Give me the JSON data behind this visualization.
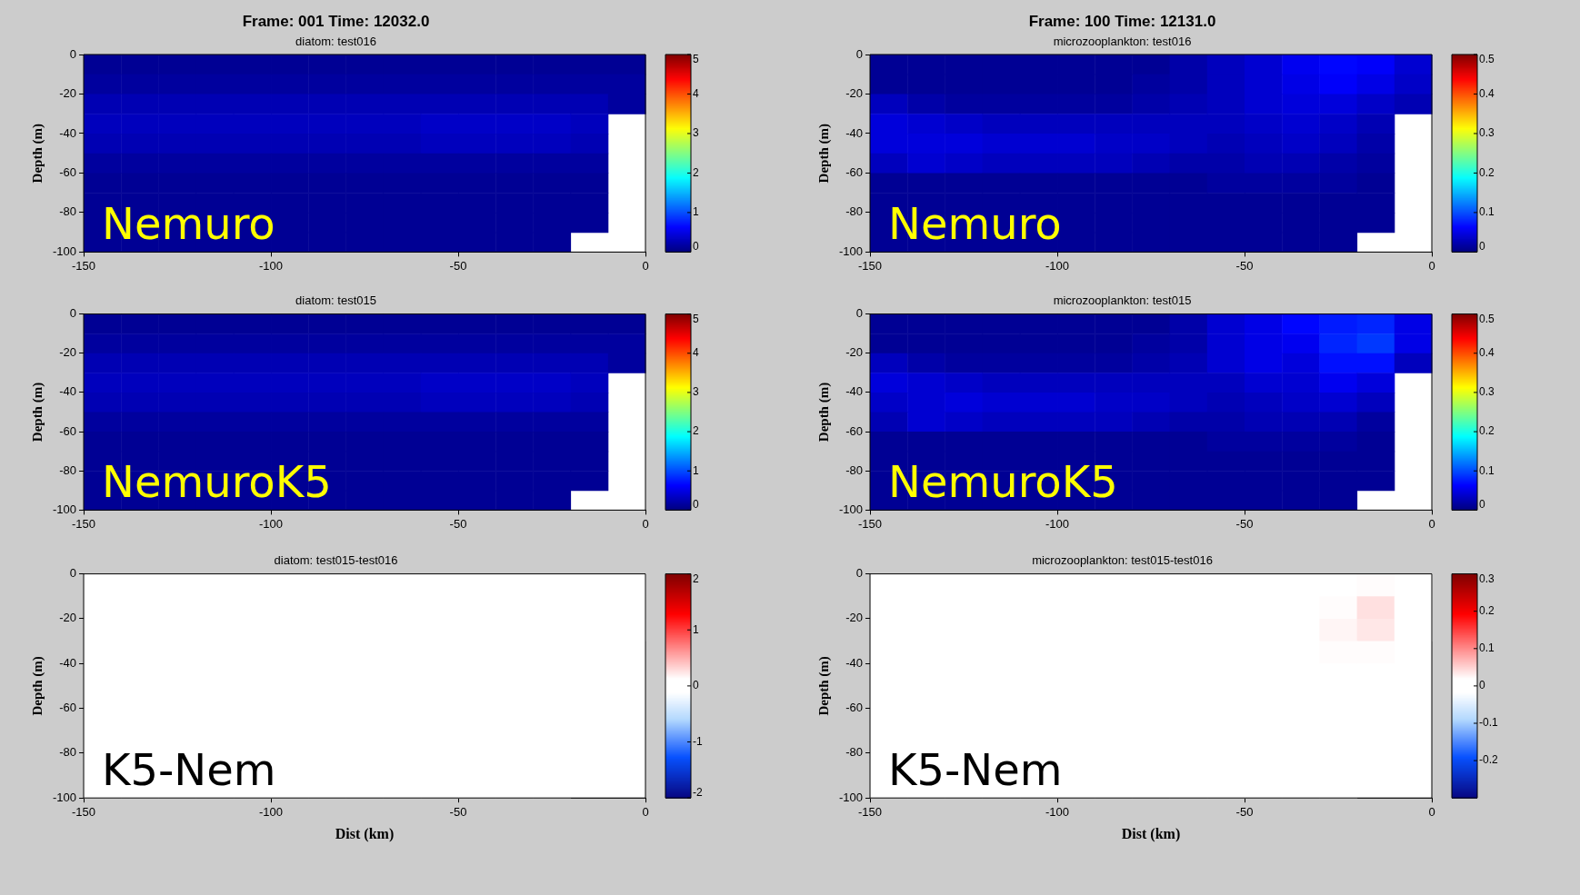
{
  "chart_data": [
    {
      "type": "heatmap",
      "title": "Frame: 001 Time: 12032.0",
      "subtitle": "diatom: test016",
      "ylabel": "Depth (m)",
      "annotations": [
        "Nemuro"
      ],
      "x": [
        -145,
        -135,
        -125,
        -115,
        -105,
        -95,
        -85,
        -75,
        -65,
        -55,
        -45,
        -35,
        -25,
        -15,
        -5
      ],
      "y": [
        -5,
        -15,
        -25,
        -35,
        -45,
        -55,
        -65,
        -75,
        -85,
        -95
      ],
      "xlim": [
        -150,
        0
      ],
      "xticks": [
        -150,
        -100,
        -50,
        0
      ],
      "ylim": [
        -100,
        0
      ],
      "yticks": [
        -100,
        -80,
        -60,
        -40,
        -20,
        0
      ],
      "clim": [
        0,
        5
      ],
      "cticks": [
        0,
        1,
        2,
        3,
        4,
        5
      ],
      "cells": [
        [
          0.1,
          0.1,
          0.1,
          0.1,
          0.1,
          0.1,
          0.1,
          0.1,
          0.1,
          0.1,
          0.1,
          0.1,
          0.1,
          0.1,
          0.1
        ],
        [
          0.15,
          0.15,
          0.15,
          0.15,
          0.15,
          0.15,
          0.15,
          0.15,
          0.15,
          0.15,
          0.15,
          0.15,
          0.15,
          0.15,
          0.15
        ],
        [
          0.25,
          0.25,
          0.25,
          0.25,
          0.25,
          0.25,
          0.25,
          0.25,
          0.25,
          0.25,
          0.25,
          0.25,
          0.25,
          0.25,
          0.15
        ],
        [
          0.3,
          0.3,
          0.3,
          0.3,
          0.3,
          0.3,
          0.3,
          0.3,
          0.3,
          0.35,
          0.35,
          0.35,
          0.35,
          0.3,
          null
        ],
        [
          0.25,
          0.25,
          0.25,
          0.25,
          0.25,
          0.25,
          0.25,
          0.25,
          0.25,
          0.3,
          0.3,
          0.3,
          0.3,
          0.25,
          null
        ],
        [
          0.15,
          0.15,
          0.15,
          0.15,
          0.15,
          0.15,
          0.15,
          0.15,
          0.15,
          0.15,
          0.15,
          0.15,
          0.15,
          0.15,
          null
        ],
        [
          0.1,
          0.1,
          0.1,
          0.1,
          0.1,
          0.1,
          0.1,
          0.1,
          0.1,
          0.1,
          0.1,
          0.1,
          0.1,
          0.1,
          null
        ],
        [
          0.1,
          0.1,
          0.1,
          0.1,
          0.1,
          0.1,
          0.1,
          0.1,
          0.1,
          0.1,
          0.1,
          0.1,
          0.1,
          0.1,
          null
        ],
        [
          0.1,
          0.1,
          0.1,
          0.1,
          0.1,
          0.1,
          0.1,
          0.1,
          0.1,
          0.1,
          0.1,
          0.1,
          0.1,
          0.1,
          null
        ],
        [
          0.1,
          0.1,
          0.1,
          0.1,
          0.1,
          0.1,
          0.1,
          0.1,
          0.1,
          0.1,
          0.1,
          0.1,
          0.1,
          null,
          null
        ]
      ]
    },
    {
      "type": "heatmap",
      "title": "Frame: 100 Time: 12131.0",
      "subtitle": "microzooplankton: test016",
      "ylabel": "Depth (m)",
      "annotations": [
        "Nemuro"
      ],
      "x": [
        -145,
        -135,
        -125,
        -115,
        -105,
        -95,
        -85,
        -75,
        -65,
        -55,
        -45,
        -35,
        -25,
        -15,
        -5
      ],
      "y": [
        -5,
        -15,
        -25,
        -35,
        -45,
        -55,
        -65,
        -75,
        -85,
        -95
      ],
      "xlim": [
        -150,
        0
      ],
      "xticks": [
        -150,
        -100,
        -50,
        0
      ],
      "ylim": [
        -100,
        0
      ],
      "yticks": [
        -100,
        -80,
        -60,
        -40,
        -20,
        0
      ],
      "clim": [
        0,
        0.5
      ],
      "cticks": [
        0,
        0.1,
        0.2,
        0.3,
        0.4,
        0.5
      ],
      "cells": [
        [
          0.01,
          0.01,
          0.01,
          0.01,
          0.01,
          0.01,
          0.01,
          0.01,
          0.02,
          0.03,
          0.04,
          0.055,
          0.065,
          0.06,
          0.04
        ],
        [
          0.01,
          0.01,
          0.01,
          0.01,
          0.01,
          0.01,
          0.01,
          0.015,
          0.02,
          0.03,
          0.04,
          0.05,
          0.06,
          0.05,
          0.035
        ],
        [
          0.03,
          0.02,
          0.015,
          0.015,
          0.015,
          0.015,
          0.015,
          0.02,
          0.025,
          0.03,
          0.04,
          0.045,
          0.045,
          0.035,
          0.025
        ],
        [
          0.045,
          0.04,
          0.035,
          0.03,
          0.03,
          0.03,
          0.03,
          0.03,
          0.03,
          0.03,
          0.035,
          0.04,
          0.035,
          0.025,
          null
        ],
        [
          0.045,
          0.045,
          0.045,
          0.04,
          0.04,
          0.04,
          0.035,
          0.035,
          0.03,
          0.025,
          0.03,
          0.035,
          0.03,
          0.02,
          null
        ],
        [
          0.03,
          0.04,
          0.035,
          0.03,
          0.03,
          0.03,
          0.03,
          0.025,
          0.02,
          0.02,
          0.025,
          0.025,
          0.02,
          0.015,
          null
        ],
        [
          0.01,
          0.01,
          0.01,
          0.01,
          0.01,
          0.01,
          0.01,
          0.01,
          0.01,
          0.015,
          0.015,
          0.015,
          0.015,
          0.01,
          null
        ],
        [
          0.01,
          0.01,
          0.01,
          0.01,
          0.01,
          0.01,
          0.01,
          0.01,
          0.01,
          0.01,
          0.01,
          0.01,
          0.01,
          0.01,
          null
        ],
        [
          0.01,
          0.01,
          0.01,
          0.01,
          0.01,
          0.01,
          0.01,
          0.01,
          0.01,
          0.01,
          0.01,
          0.01,
          0.01,
          0.01,
          null
        ],
        [
          0.01,
          0.01,
          0.01,
          0.01,
          0.01,
          0.01,
          0.01,
          0.01,
          0.01,
          0.01,
          0.01,
          0.01,
          0.01,
          null,
          null
        ]
      ]
    },
    {
      "type": "heatmap",
      "title": "diatom: test015",
      "ylabel": "Depth (m)",
      "annotations": [
        "NemuroK5"
      ],
      "x": [
        -145,
        -135,
        -125,
        -115,
        -105,
        -95,
        -85,
        -75,
        -65,
        -55,
        -45,
        -35,
        -25,
        -15,
        -5
      ],
      "y": [
        -5,
        -15,
        -25,
        -35,
        -45,
        -55,
        -65,
        -75,
        -85,
        -95
      ],
      "xlim": [
        -150,
        0
      ],
      "xticks": [
        -150,
        -100,
        -50,
        0
      ],
      "ylim": [
        -100,
        0
      ],
      "yticks": [
        -100,
        -80,
        -60,
        -40,
        -20,
        0
      ],
      "clim": [
        0,
        5
      ],
      "cticks": [
        0,
        1,
        2,
        3,
        4,
        5
      ],
      "cells": [
        [
          0.1,
          0.1,
          0.1,
          0.1,
          0.1,
          0.1,
          0.1,
          0.1,
          0.1,
          0.1,
          0.1,
          0.1,
          0.1,
          0.1,
          0.1
        ],
        [
          0.15,
          0.15,
          0.15,
          0.15,
          0.15,
          0.15,
          0.15,
          0.15,
          0.15,
          0.15,
          0.15,
          0.15,
          0.15,
          0.15,
          0.15
        ],
        [
          0.25,
          0.25,
          0.25,
          0.25,
          0.25,
          0.25,
          0.25,
          0.25,
          0.25,
          0.25,
          0.25,
          0.25,
          0.25,
          0.25,
          0.15
        ],
        [
          0.3,
          0.3,
          0.3,
          0.3,
          0.3,
          0.3,
          0.3,
          0.3,
          0.3,
          0.35,
          0.35,
          0.35,
          0.35,
          0.3,
          null
        ],
        [
          0.25,
          0.25,
          0.25,
          0.25,
          0.25,
          0.25,
          0.25,
          0.25,
          0.25,
          0.3,
          0.3,
          0.3,
          0.3,
          0.25,
          null
        ],
        [
          0.15,
          0.15,
          0.15,
          0.15,
          0.15,
          0.15,
          0.15,
          0.15,
          0.15,
          0.15,
          0.15,
          0.15,
          0.15,
          0.15,
          null
        ],
        [
          0.1,
          0.1,
          0.1,
          0.1,
          0.1,
          0.1,
          0.1,
          0.1,
          0.1,
          0.1,
          0.1,
          0.1,
          0.1,
          0.1,
          null
        ],
        [
          0.1,
          0.1,
          0.1,
          0.1,
          0.1,
          0.1,
          0.1,
          0.1,
          0.1,
          0.1,
          0.1,
          0.1,
          0.1,
          0.1,
          null
        ],
        [
          0.1,
          0.1,
          0.1,
          0.1,
          0.1,
          0.1,
          0.1,
          0.1,
          0.1,
          0.1,
          0.1,
          0.1,
          0.1,
          0.1,
          null
        ],
        [
          0.1,
          0.1,
          0.1,
          0.1,
          0.1,
          0.1,
          0.1,
          0.1,
          0.1,
          0.1,
          0.1,
          0.1,
          0.1,
          null,
          null
        ]
      ]
    },
    {
      "type": "heatmap",
      "title": "microzooplankton: test015",
      "ylabel": "Depth (m)",
      "annotations": [
        "NemuroK5"
      ],
      "x": [
        -145,
        -135,
        -125,
        -115,
        -105,
        -95,
        -85,
        -75,
        -65,
        -55,
        -45,
        -35,
        -25,
        -15,
        -5
      ],
      "y": [
        -5,
        -15,
        -25,
        -35,
        -45,
        -55,
        -65,
        -75,
        -85,
        -95
      ],
      "xlim": [
        -150,
        0
      ],
      "xticks": [
        -150,
        -100,
        -50,
        0
      ],
      "ylim": [
        -100,
        0
      ],
      "yticks": [
        -100,
        -80,
        -60,
        -40,
        -20,
        0
      ],
      "clim": [
        0,
        0.5
      ],
      "cticks": [
        0,
        0.1,
        0.2,
        0.3,
        0.4,
        0.5
      ],
      "cells": [
        [
          0.01,
          0.01,
          0.01,
          0.01,
          0.01,
          0.01,
          0.01,
          0.01,
          0.02,
          0.04,
          0.05,
          0.065,
          0.075,
          0.08,
          0.05
        ],
        [
          0.01,
          0.01,
          0.01,
          0.01,
          0.01,
          0.01,
          0.01,
          0.015,
          0.02,
          0.04,
          0.05,
          0.055,
          0.08,
          0.09,
          0.05
        ],
        [
          0.03,
          0.02,
          0.015,
          0.015,
          0.015,
          0.015,
          0.015,
          0.02,
          0.025,
          0.04,
          0.05,
          0.045,
          0.07,
          0.07,
          0.03
        ],
        [
          0.045,
          0.04,
          0.035,
          0.03,
          0.03,
          0.03,
          0.03,
          0.03,
          0.03,
          0.03,
          0.04,
          0.04,
          0.055,
          0.045,
          null
        ],
        [
          0.035,
          0.04,
          0.045,
          0.04,
          0.04,
          0.04,
          0.035,
          0.035,
          0.03,
          0.025,
          0.03,
          0.035,
          0.04,
          0.03,
          null
        ],
        [
          0.025,
          0.04,
          0.035,
          0.03,
          0.03,
          0.03,
          0.03,
          0.025,
          0.02,
          0.02,
          0.025,
          0.025,
          0.025,
          0.015,
          null
        ],
        [
          0.01,
          0.01,
          0.01,
          0.01,
          0.01,
          0.01,
          0.01,
          0.01,
          0.01,
          0.015,
          0.015,
          0.015,
          0.015,
          0.01,
          null
        ],
        [
          0.01,
          0.01,
          0.01,
          0.01,
          0.01,
          0.01,
          0.01,
          0.01,
          0.01,
          0.01,
          0.01,
          0.01,
          0.01,
          0.01,
          null
        ],
        [
          0.01,
          0.01,
          0.01,
          0.01,
          0.01,
          0.01,
          0.01,
          0.01,
          0.01,
          0.01,
          0.01,
          0.01,
          0.01,
          0.01,
          null
        ],
        [
          0.01,
          0.01,
          0.01,
          0.01,
          0.01,
          0.01,
          0.01,
          0.01,
          0.01,
          0.01,
          0.01,
          0.01,
          0.01,
          null,
          null
        ]
      ]
    },
    {
      "type": "heatmap",
      "title": "diatom: test015-test016",
      "xlabel": "Dist (km)",
      "ylabel": "Depth (m)",
      "annotations": [
        "K5-Nem"
      ],
      "x": [
        -145,
        -135,
        -125,
        -115,
        -105,
        -95,
        -85,
        -75,
        -65,
        -55,
        -45,
        -35,
        -25,
        -15,
        -5
      ],
      "y": [
        -5,
        -15,
        -25,
        -35,
        -45,
        -55,
        -65,
        -75,
        -85,
        -95
      ],
      "xlim": [
        -150,
        0
      ],
      "xticks": [
        -150,
        -100,
        -50,
        0
      ],
      "ylim": [
        -100,
        0
      ],
      "yticks": [
        -100,
        -80,
        -60,
        -40,
        -20,
        0
      ],
      "clim": [
        -2,
        2
      ],
      "cticks": [
        -2,
        -1,
        0,
        1,
        2
      ],
      "cells": [
        [
          0,
          0,
          0,
          0,
          0,
          0,
          0,
          0,
          0,
          0,
          0,
          0,
          0,
          0,
          0
        ],
        [
          0,
          0,
          0,
          0,
          0,
          0,
          0,
          0,
          0,
          0,
          0,
          0,
          0,
          0,
          0
        ],
        [
          0,
          0,
          0,
          0,
          0,
          0,
          0,
          0,
          0,
          0,
          0,
          0,
          0,
          0,
          0
        ],
        [
          0,
          0,
          0,
          0,
          0,
          0,
          0,
          0,
          0,
          0,
          0,
          0,
          0,
          0,
          null
        ],
        [
          0,
          0,
          0,
          0,
          0,
          0,
          0,
          0,
          0,
          0,
          0,
          0,
          0,
          0,
          null
        ],
        [
          0,
          0,
          0,
          0,
          0,
          0,
          0,
          0,
          0,
          0,
          0,
          0,
          0,
          0,
          null
        ],
        [
          0,
          0,
          0,
          0,
          0,
          0,
          0,
          0,
          0,
          0,
          0,
          0,
          0,
          0,
          null
        ],
        [
          0,
          0,
          0,
          0,
          0,
          0,
          0,
          0,
          0,
          0,
          0,
          0,
          0,
          0,
          null
        ],
        [
          0,
          0,
          0,
          0,
          0,
          0,
          0,
          0,
          0,
          0,
          0,
          0,
          0,
          0,
          null
        ],
        [
          0,
          0,
          0,
          0,
          0,
          0,
          0,
          0,
          0,
          0,
          0,
          0,
          0,
          null,
          null
        ]
      ]
    },
    {
      "type": "heatmap",
      "title": "microzooplankton: test015-test016",
      "xlabel": "Dist (km)",
      "ylabel": "Depth (m)",
      "annotations": [
        "K5-Nem"
      ],
      "x": [
        -145,
        -135,
        -125,
        -115,
        -105,
        -95,
        -85,
        -75,
        -65,
        -55,
        -45,
        -35,
        -25,
        -15,
        -5
      ],
      "y": [
        -5,
        -15,
        -25,
        -35,
        -45,
        -55,
        -65,
        -75,
        -85,
        -95
      ],
      "xlim": [
        -150,
        0
      ],
      "xticks": [
        -150,
        -100,
        -50,
        0
      ],
      "ylim": [
        -100,
        0
      ],
      "yticks": [
        -100,
        -80,
        -60,
        -40,
        -20,
        0
      ],
      "clim": [
        -0.3,
        0.3
      ],
      "cticks": [
        -0.2,
        -0.1,
        0,
        0.1,
        0.2,
        0.3
      ],
      "cells": [
        [
          0,
          0,
          0,
          0,
          0,
          0,
          0,
          0,
          0,
          0.01,
          0.01,
          0.01,
          0.015,
          0.02,
          0.01
        ],
        [
          0,
          0,
          0,
          0,
          0,
          0,
          0,
          0,
          0,
          0.01,
          0.01,
          0.005,
          0.02,
          0.04,
          0.015
        ],
        [
          0,
          0,
          0,
          0,
          0,
          0,
          0,
          0,
          0,
          0.01,
          0.01,
          0,
          0.025,
          0.035,
          0.005
        ],
        [
          0,
          0,
          0,
          0,
          0,
          0,
          0,
          0,
          0,
          0,
          0.005,
          0,
          0.02,
          0.02,
          null
        ],
        [
          -0.01,
          -0.005,
          0,
          0,
          0,
          0,
          0,
          0,
          0,
          0,
          0,
          0,
          0.01,
          0.01,
          null
        ],
        [
          -0.005,
          0,
          0,
          0,
          0,
          0,
          0,
          0,
          0,
          0,
          0,
          0,
          0.005,
          0,
          null
        ],
        [
          0,
          0,
          0,
          0,
          0,
          0,
          0,
          0,
          0,
          0,
          0,
          0,
          0,
          0,
          null
        ],
        [
          0,
          0,
          0,
          0,
          0,
          0,
          0,
          0,
          0,
          0,
          0,
          0,
          0,
          0,
          null
        ],
        [
          0,
          0,
          0,
          0,
          0,
          0,
          0,
          0,
          0,
          0,
          0,
          0,
          0,
          0,
          null
        ],
        [
          0,
          0,
          0,
          0,
          0,
          0,
          0,
          0,
          0,
          0,
          0,
          0,
          0,
          null,
          null
        ]
      ]
    }
  ]
}
